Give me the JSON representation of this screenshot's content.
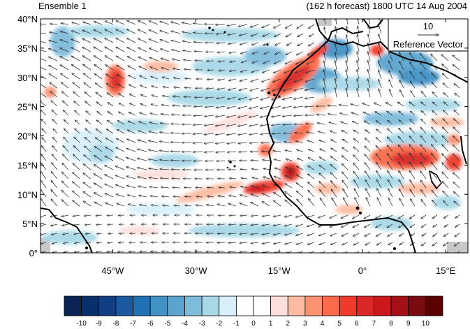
{
  "header": {
    "left_title": "Ensemble 1",
    "right_title": "(162 h forecast) 1800 UTC 14 Aug 2004"
  },
  "axes": {
    "lat_labels": [
      "40°N",
      "35°N",
      "30°N",
      "25°N",
      "20°N",
      "15°N",
      "10°N",
      "5°N",
      "0°"
    ],
    "lat_values": [
      40,
      35,
      30,
      25,
      20,
      15,
      10,
      5,
      0
    ],
    "lon_labels": [
      "45°W",
      "30°W",
      "15°W",
      "0°",
      "15°E"
    ],
    "lon_values": [
      -45,
      -30,
      -15,
      0,
      15
    ],
    "lon_range": [
      -58,
      19
    ],
    "lat_range": [
      0,
      40
    ]
  },
  "reference_vector": {
    "magnitude": "10",
    "label": "Reference Vector"
  },
  "colorbar": {
    "labels": [
      "-10",
      "-9",
      "-8",
      "-7",
      "-6",
      "-5",
      "-4",
      "-3",
      "-2",
      "-1",
      "0",
      "1",
      "2",
      "3",
      "4",
      "5",
      "6",
      "7",
      "8",
      "9",
      "10"
    ],
    "colors": [
      "#0b2454",
      "#08306b",
      "#123f84",
      "#1b5aa0",
      "#2171b5",
      "#4292c6",
      "#5aa4cf",
      "#7fbcdb",
      "#a8d8e6",
      "#d9f0fb",
      "#ffffff",
      "#ffffff",
      "#fde0dd",
      "#fcbba1",
      "#fc9272",
      "#fb6a4a",
      "#ef3b2c",
      "#d92827",
      "#cb181d",
      "#a50f15",
      "#7b0b10",
      "#5b0000"
    ]
  }
}
